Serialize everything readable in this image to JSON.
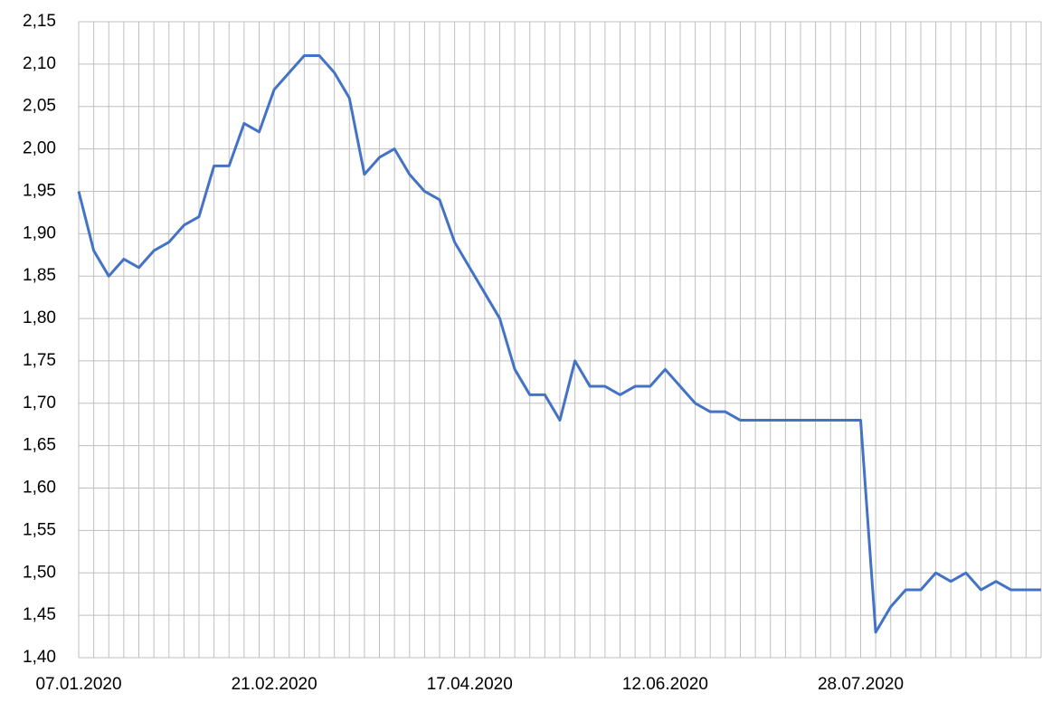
{
  "chart_data": {
    "type": "line",
    "categories": [
      "07.01.2020",
      null,
      null,
      null,
      null,
      null,
      null,
      null,
      null,
      null,
      null,
      null,
      null,
      "21.02.2020",
      null,
      null,
      null,
      null,
      null,
      null,
      null,
      null,
      null,
      null,
      null,
      null,
      "17.04.2020",
      null,
      null,
      null,
      null,
      null,
      null,
      null,
      null,
      null,
      null,
      null,
      null,
      "12.06.2020",
      null,
      null,
      null,
      null,
      null,
      null,
      null,
      null,
      null,
      null,
      null,
      null,
      "28.07.2020",
      null,
      null,
      null,
      null,
      null,
      null,
      null,
      null,
      null,
      null,
      null,
      null
    ],
    "series": [
      {
        "color": "#4472c4",
        "values": [
          1.95,
          1.88,
          1.85,
          1.87,
          1.86,
          1.88,
          1.89,
          1.91,
          1.92,
          1.98,
          1.98,
          2.03,
          2.02,
          2.07,
          2.09,
          2.11,
          2.11,
          2.09,
          2.06,
          1.97,
          1.99,
          2.0,
          1.97,
          1.95,
          1.94,
          1.89,
          1.86,
          1.83,
          1.8,
          1.74,
          1.71,
          1.71,
          1.68,
          1.75,
          1.72,
          1.72,
          1.71,
          1.72,
          1.72,
          1.74,
          1.72,
          1.7,
          1.69,
          1.69,
          1.68,
          1.68,
          1.68,
          1.68,
          1.68,
          1.68,
          1.68,
          1.68,
          1.68,
          1.43,
          1.46,
          1.48,
          1.48,
          1.5,
          1.49,
          1.5,
          1.48,
          1.49,
          1.48,
          1.48,
          1.48
        ]
      }
    ],
    "ylim": [
      1.4,
      2.15
    ],
    "yticks": [
      {
        "value": 1.4,
        "label": "1,40"
      },
      {
        "value": 1.45,
        "label": "1,45"
      },
      {
        "value": 1.5,
        "label": "1,50"
      },
      {
        "value": 1.55,
        "label": "1,55"
      },
      {
        "value": 1.6,
        "label": "1,60"
      },
      {
        "value": 1.65,
        "label": "1,65"
      },
      {
        "value": 1.7,
        "label": "1,70"
      },
      {
        "value": 1.75,
        "label": "1,75"
      },
      {
        "value": 1.8,
        "label": "1,80"
      },
      {
        "value": 1.85,
        "label": "1,85"
      },
      {
        "value": 1.9,
        "label": "1,90"
      },
      {
        "value": 1.95,
        "label": "1,95"
      },
      {
        "value": 2.0,
        "label": "2,00"
      },
      {
        "value": 2.05,
        "label": "2,05"
      },
      {
        "value": 2.1,
        "label": "2,10"
      },
      {
        "value": 2.15,
        "label": "2,15"
      }
    ],
    "grid": true
  }
}
